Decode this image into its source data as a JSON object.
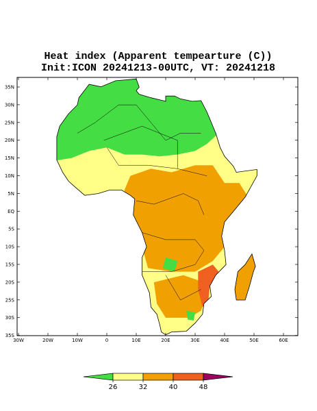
{
  "title": [
    "Heat index (Apparent tempearture (C))",
    "Init:ICON 20241213-00UTC, VT: 20241218"
  ],
  "lat_labels": [
    "35N",
    "30N",
    "25N",
    "20N",
    "15N",
    "10N",
    "5N",
    "EQ",
    "5S",
    "10S",
    "15S",
    "20S",
    "25S",
    "30S",
    "35S"
  ],
  "lon_labels": [
    "30W",
    "20W",
    "10W",
    "0",
    "10E",
    "20E",
    "30E",
    "40E",
    "50E",
    "60E"
  ],
  "colorbar": {
    "ticks": [
      26,
      32,
      40,
      48
    ],
    "colors": [
      "#44dd44",
      "#ffff88",
      "#f0a000",
      "#f06020",
      "#a00060"
    ]
  }
}
